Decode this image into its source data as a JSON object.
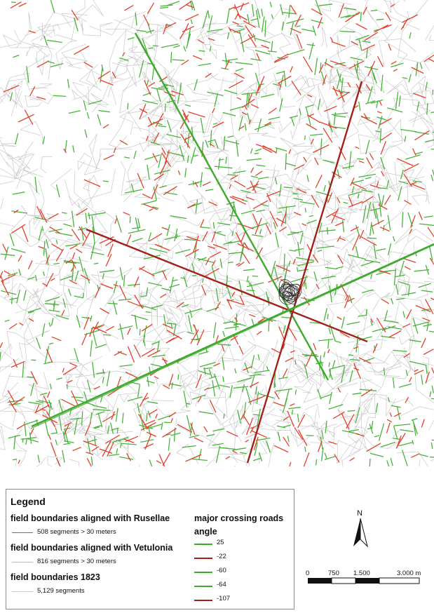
{
  "colors": {
    "rusellae": "#e2412c",
    "vetulonia": "#49b33c",
    "boundaries_1823": "#c9c9c9",
    "road_green": "#3faa2d",
    "road_red": "#a3201a",
    "center_marker": "#2a2a2a"
  },
  "legend": {
    "title": "Legend",
    "rusellae_heading": "field boundaries aligned with Rusellae",
    "rusellae_count": "508 segments > 30 meters",
    "vetulonia_heading": "field boundaries aligned with Vetulonia",
    "vetulonia_count": "816 segments > 30 meters",
    "boundaries_heading": "field boundaries 1823",
    "boundaries_count": "5,129 segments",
    "roads_heading": "major crossing roads",
    "roads_subheading": "angle",
    "roads": [
      {
        "angle": "25",
        "color": "green"
      },
      {
        "angle": "-22",
        "color": "red"
      },
      {
        "angle": "-60",
        "color": "green"
      },
      {
        "angle": "-64",
        "color": "green"
      },
      {
        "angle": "-107",
        "color": "red"
      }
    ]
  },
  "north_arrow": {
    "letter": "N"
  },
  "scale_bar": {
    "ticks": [
      "0",
      "750",
      "1.500",
      "3.000 m"
    ]
  }
}
